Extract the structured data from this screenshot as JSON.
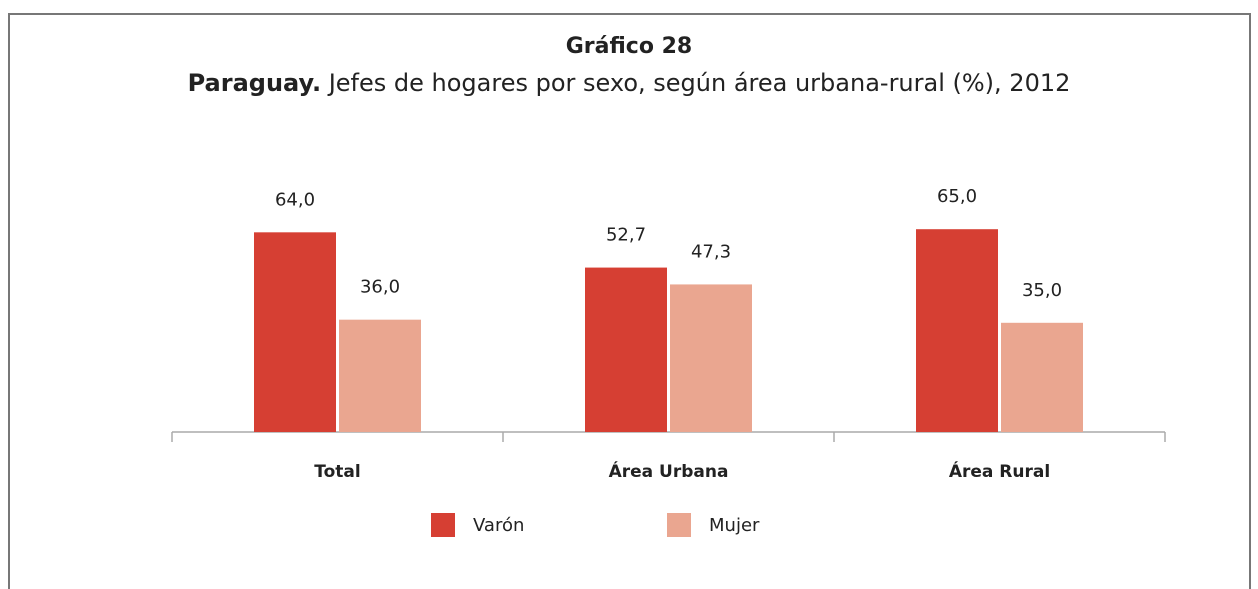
{
  "chart_data": {
    "type": "bar",
    "title": "Gráfico 28",
    "subtitle": [
      "Paraguay.",
      "Jefes de hogares por sexo, según área urbana-rural (%), 2012"
    ],
    "categories": [
      "Total",
      "Área Urbana",
      "Área Rural"
    ],
    "series": [
      {
        "name": "Varón",
        "color": "#d63f33",
        "values": [
          64.0,
          52.7,
          65.0
        ],
        "value_labels": [
          "64,0",
          "52,7",
          "65,0"
        ]
      },
      {
        "name": "Mujer",
        "color": "#eaa690",
        "values": [
          36.0,
          47.3,
          35.0
        ],
        "value_labels": [
          "36,0",
          "47,3",
          "35,0"
        ]
      }
    ],
    "ylim": [
      0,
      100
    ]
  }
}
